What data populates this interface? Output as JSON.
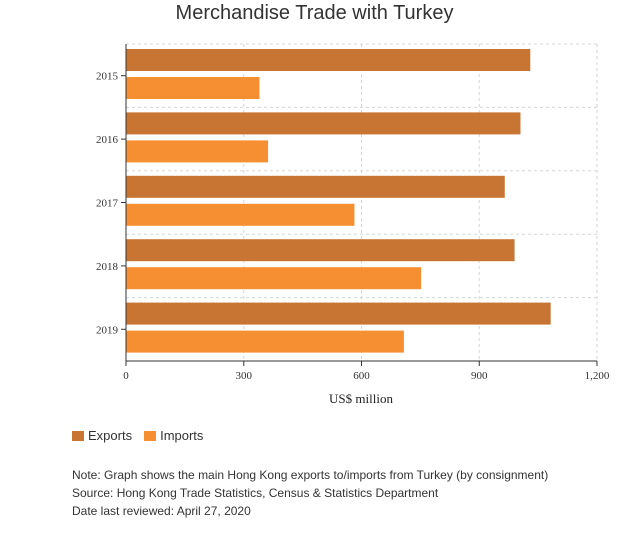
{
  "chart_data": {
    "type": "bar",
    "orientation": "horizontal",
    "title": "Merchandise Trade with Turkey",
    "xlabel": "US$ million",
    "ylabel": "",
    "categories": [
      "2015",
      "2016",
      "2017",
      "2018",
      "2019"
    ],
    "series": [
      {
        "name": "Exports",
        "color": "#c87533",
        "values": [
          1030,
          1005,
          965,
          990,
          1082
        ]
      },
      {
        "name": "Imports",
        "color": "#f68f32",
        "values": [
          340,
          362,
          582,
          752,
          708
        ]
      }
    ],
    "xlim": [
      0,
      1200
    ],
    "xticks": [
      0,
      300,
      600,
      900,
      1200
    ],
    "xtick_labels": [
      "0",
      "300",
      "600",
      "900",
      "1,200"
    ],
    "grid": true,
    "legend_position": "bottom-left"
  },
  "notes": {
    "note": "Note: Graph shows the main Hong Kong exports to/imports from Turkey (by consignment)",
    "source": "Source: Hong Kong Trade Statistics, Census & Statistics Department",
    "reviewed": "Date last reviewed: April 27, 2020"
  }
}
